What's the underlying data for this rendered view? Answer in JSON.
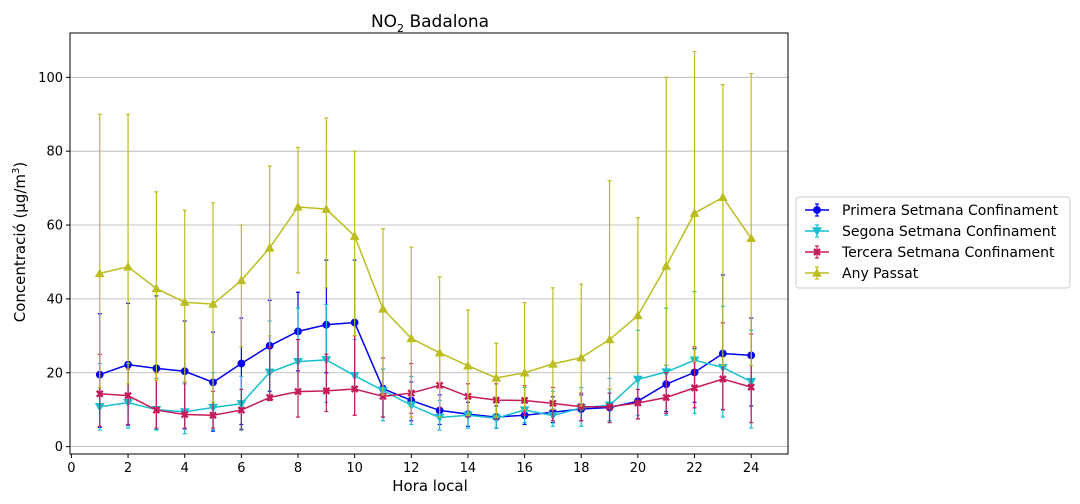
{
  "chart_data": {
    "type": "line",
    "title": {
      "main": "NO",
      "sub": "2",
      "rest": " Badalona"
    },
    "xlabel": "Hora local",
    "ylabel": {
      "prefix": "Concentració (µg/m",
      "sup": "3",
      "suffix": ")"
    },
    "xlim": [
      -0.05,
      25.3
    ],
    "ylim": [
      -2,
      112
    ],
    "xticks": [
      0,
      2,
      4,
      6,
      8,
      10,
      12,
      14,
      16,
      18,
      20,
      22,
      24
    ],
    "yticks": [
      0,
      20,
      40,
      60,
      80,
      100
    ],
    "grid": "horizontal",
    "legend_position": "right",
    "x": [
      1,
      2,
      3,
      4,
      5,
      6,
      7,
      8,
      9,
      10,
      11,
      12,
      13,
      14,
      15,
      16,
      17,
      18,
      19,
      20,
      21,
      22,
      23,
      24
    ],
    "series": [
      {
        "name": "Primera Setmana Confinament",
        "color": "#0000ee",
        "marker": "circle",
        "values": [
          19.5,
          22.2,
          21.2,
          20.4,
          17.4,
          22.5,
          27.3,
          31.2,
          33.0,
          33.6,
          15.7,
          12.5,
          9.8,
          8.8,
          8.0,
          8.5,
          9.3,
          10.2,
          10.6,
          12.3,
          16.9,
          20.1,
          25.2,
          24.7
        ],
        "err_low": [
          5.2,
          5.8,
          4.6,
          4.8,
          4.2,
          6.0,
          15.0,
          20.5,
          20.0,
          16.0,
          8.0,
          7.0,
          6.0,
          5.5,
          5.0,
          6.0,
          6.5,
          7.0,
          7.0,
          7.5,
          9.5,
          12.0,
          10.0,
          11.0
        ],
        "err_high": [
          36.0,
          38.8,
          40.8,
          34.0,
          31.0,
          34.8,
          39.6,
          41.8,
          50.5,
          50.5,
          21.0,
          17.5,
          14.0,
          12.0,
          11.0,
          12.0,
          13.5,
          14.0,
          15.5,
          18.0,
          22.0,
          26.5,
          46.5,
          34.8
        ]
      },
      {
        "name": "Segona Setmana Confinament",
        "color": "#17becf",
        "marker": "triangle-down",
        "values": [
          10.8,
          11.9,
          10.0,
          9.4,
          10.6,
          11.6,
          20.1,
          23.0,
          23.5,
          19.2,
          15.2,
          11.2,
          7.9,
          8.5,
          7.7,
          9.9,
          8.4,
          10.5,
          11.2,
          18.2,
          20.2,
          23.4,
          21.4,
          17.6
        ],
        "err_low": [
          4.5,
          5.0,
          4.5,
          3.5,
          4.5,
          4.8,
          12.5,
          15.0,
          12.0,
          8.5,
          7.0,
          6.0,
          4.5,
          5.0,
          5.0,
          6.5,
          5.5,
          5.5,
          7.0,
          8.5,
          8.5,
          9.0,
          8.0,
          5.0
        ],
        "err_high": [
          22.5,
          22.5,
          18.5,
          17.0,
          20.0,
          19.0,
          34.0,
          37.5,
          38.5,
          29.0,
          21.0,
          19.0,
          12.5,
          14.0,
          13.0,
          16.0,
          15.0,
          16.0,
          18.5,
          31.5,
          37.5,
          42.0,
          38.0,
          31.5
        ]
      },
      {
        "name": "Tercera Setmana Confinament",
        "color": "#c51b5a",
        "marker": "x",
        "values": [
          14.3,
          13.8,
          9.9,
          8.7,
          8.5,
          9.9,
          13.3,
          14.9,
          15.1,
          15.6,
          13.6,
          14.5,
          16.6,
          13.6,
          12.6,
          12.5,
          11.7,
          10.8,
          10.8,
          11.8,
          13.3,
          15.9,
          18.3,
          16.1
        ],
        "err_low": [
          5.5,
          6.0,
          5.0,
          5.0,
          5.0,
          4.5,
          12.5,
          8.0,
          9.5,
          8.5,
          8.0,
          9.0,
          10.5,
          8.0,
          7.5,
          8.5,
          7.0,
          7.0,
          6.5,
          7.5,
          9.0,
          10.5,
          10.0,
          6.5
        ],
        "err_high": [
          25.0,
          21.0,
          20.0,
          17.5,
          15.0,
          15.5,
          27.0,
          29.0,
          25.0,
          30.0,
          24.0,
          22.5,
          25.0,
          17.0,
          17.0,
          16.5,
          16.0,
          14.5,
          14.5,
          15.5,
          20.0,
          27.0,
          33.5,
          30.5
        ]
      },
      {
        "name": "Any Passat",
        "color": "#bcbd22",
        "marker": "triangle-up",
        "values": [
          46.9,
          48.7,
          42.8,
          39.1,
          38.6,
          45.0,
          53.8,
          64.9,
          64.3,
          57.0,
          37.3,
          29.3,
          25.4,
          21.9,
          18.6,
          20.0,
          22.4,
          24.1,
          29.0,
          35.5,
          48.9,
          63.2,
          67.5,
          56.4
        ],
        "err_low": [
          16.0,
          17.0,
          18.0,
          17.5,
          12.0,
          27.0,
          30.0,
          47.0,
          43.0,
          30.0,
          14.0,
          8.0,
          8.0,
          8.5,
          8.0,
          10.0,
          10.0,
          11.0,
          15.5,
          20.0,
          22.0,
          23.0,
          22.0,
          22.0
        ],
        "err_high": [
          90.0,
          90.0,
          69.0,
          64.0,
          66.0,
          60.0,
          76.0,
          81.0,
          89.0,
          80.0,
          59.0,
          54.0,
          46.0,
          37.0,
          28.0,
          39.0,
          43.0,
          44.0,
          72.0,
          62.0,
          100.0,
          107.0,
          98.0,
          101.0
        ]
      }
    ]
  }
}
